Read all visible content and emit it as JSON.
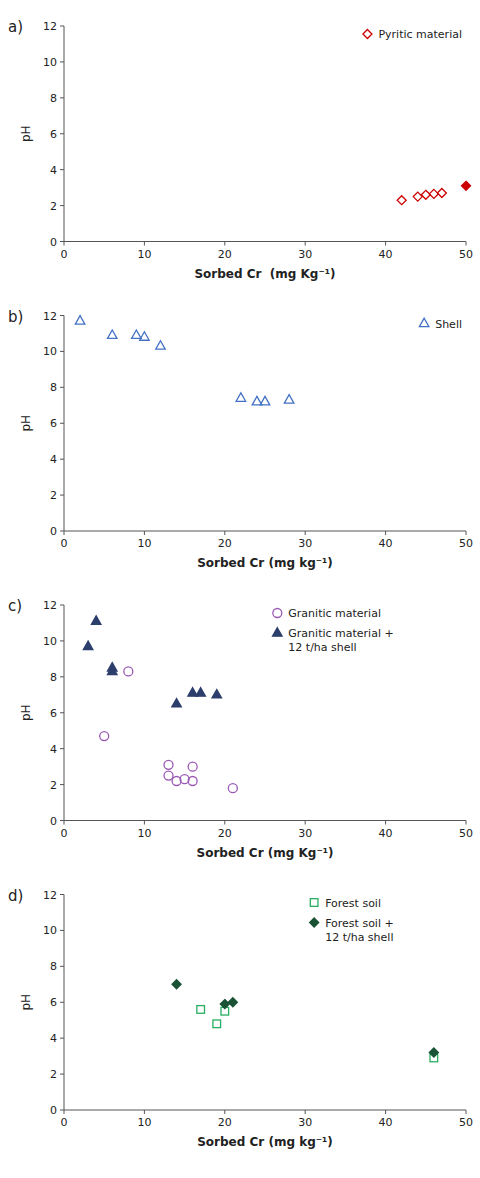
{
  "chart_data": [
    {
      "type": "scatter",
      "title": "a)",
      "xlabel": "Sorbed Cr  (mg Kg⁻¹)",
      "ylabel": "pH",
      "xlim": [
        0,
        50
      ],
      "ylim": [
        0,
        12
      ],
      "xticks": [
        0,
        10,
        20,
        30,
        40,
        50
      ],
      "yticks": [
        0,
        2,
        4,
        6,
        8,
        10,
        12
      ],
      "grid": false,
      "legend": "upper right",
      "series": [
        {
          "name": "Pyritic material",
          "color": "#CC0000",
          "marker": "diamond-open",
          "x": [
            42,
            44,
            45,
            46,
            47
          ],
          "values": [
            2.3,
            2.5,
            2.6,
            2.65,
            2.7
          ]
        },
        {
          "color": "#CC0000",
          "marker": "diamond-filled",
          "x": [
            50
          ],
          "values": [
            3.1
          ]
        }
      ]
    },
    {
      "type": "scatter",
      "title": "b)",
      "xlabel": "Sorbed Cr (mg kg⁻¹)",
      "ylabel": "pH",
      "xlim": [
        0,
        50
      ],
      "ylim": [
        0,
        12
      ],
      "xticks": [
        0,
        10,
        20,
        30,
        40,
        50
      ],
      "yticks": [
        0,
        2,
        4,
        6,
        8,
        10,
        12
      ],
      "grid": false,
      "legend": "upper right",
      "series": [
        {
          "name": "Shell",
          "color": "#4472C4",
          "marker": "triangle-open",
          "x": [
            2,
            6,
            9,
            10,
            12,
            22,
            24,
            25,
            28
          ],
          "values": [
            11.7,
            10.9,
            10.9,
            10.8,
            10.3,
            7.4,
            7.2,
            7.2,
            7.3
          ]
        }
      ]
    },
    {
      "type": "scatter",
      "title": "c)",
      "xlabel": "Sorbed Cr (mg Kg⁻¹)",
      "ylabel": "pH",
      "xlim": [
        0,
        50
      ],
      "ylim": [
        0,
        12
      ],
      "xticks": [
        0,
        10,
        20,
        30,
        40,
        50
      ],
      "yticks": [
        0,
        2,
        4,
        6,
        8,
        10,
        12
      ],
      "grid": false,
      "legend": "upper right",
      "series": [
        {
          "name": "Granitic material",
          "color": "#9B59B6",
          "marker": "circle-open",
          "x": [
            5,
            8,
            13,
            13,
            14,
            15,
            16,
            16,
            21
          ],
          "values": [
            4.7,
            8.3,
            2.5,
            3.1,
            2.2,
            2.3,
            2.2,
            3.0,
            1.8
          ]
        },
        {
          "name": "Granitic material +\n12 t/ha shell",
          "color": "#2C3E6B",
          "marker": "triangle-filled",
          "x": [
            3,
            4,
            6,
            6,
            14,
            16,
            17,
            19
          ],
          "values": [
            9.7,
            11.1,
            8.5,
            8.3,
            6.5,
            7.1,
            7.1,
            7.0
          ]
        }
      ]
    },
    {
      "type": "scatter",
      "title": "d)",
      "xlabel": "Sorbed Cr (mg kg⁻¹)",
      "ylabel": "pH",
      "xlim": [
        0,
        50
      ],
      "ylim": [
        0,
        12
      ],
      "xticks": [
        0,
        10,
        20,
        30,
        40,
        50
      ],
      "yticks": [
        0,
        2,
        4,
        6,
        8,
        10,
        12
      ],
      "grid": false,
      "legend": "upper right",
      "series": [
        {
          "name": "Forest soil",
          "color": "#27AE60",
          "marker": "square-open",
          "x": [
            17,
            19,
            20,
            46
          ],
          "values": [
            5.6,
            4.8,
            5.5,
            2.9
          ]
        },
        {
          "name": "Forest soil +\n12 t/ha shell",
          "color": "#1A5235",
          "marker": "diamond-filled",
          "x": [
            14,
            20,
            21,
            46
          ],
          "values": [
            7.0,
            5.9,
            6.0,
            3.2
          ]
        }
      ]
    }
  ]
}
